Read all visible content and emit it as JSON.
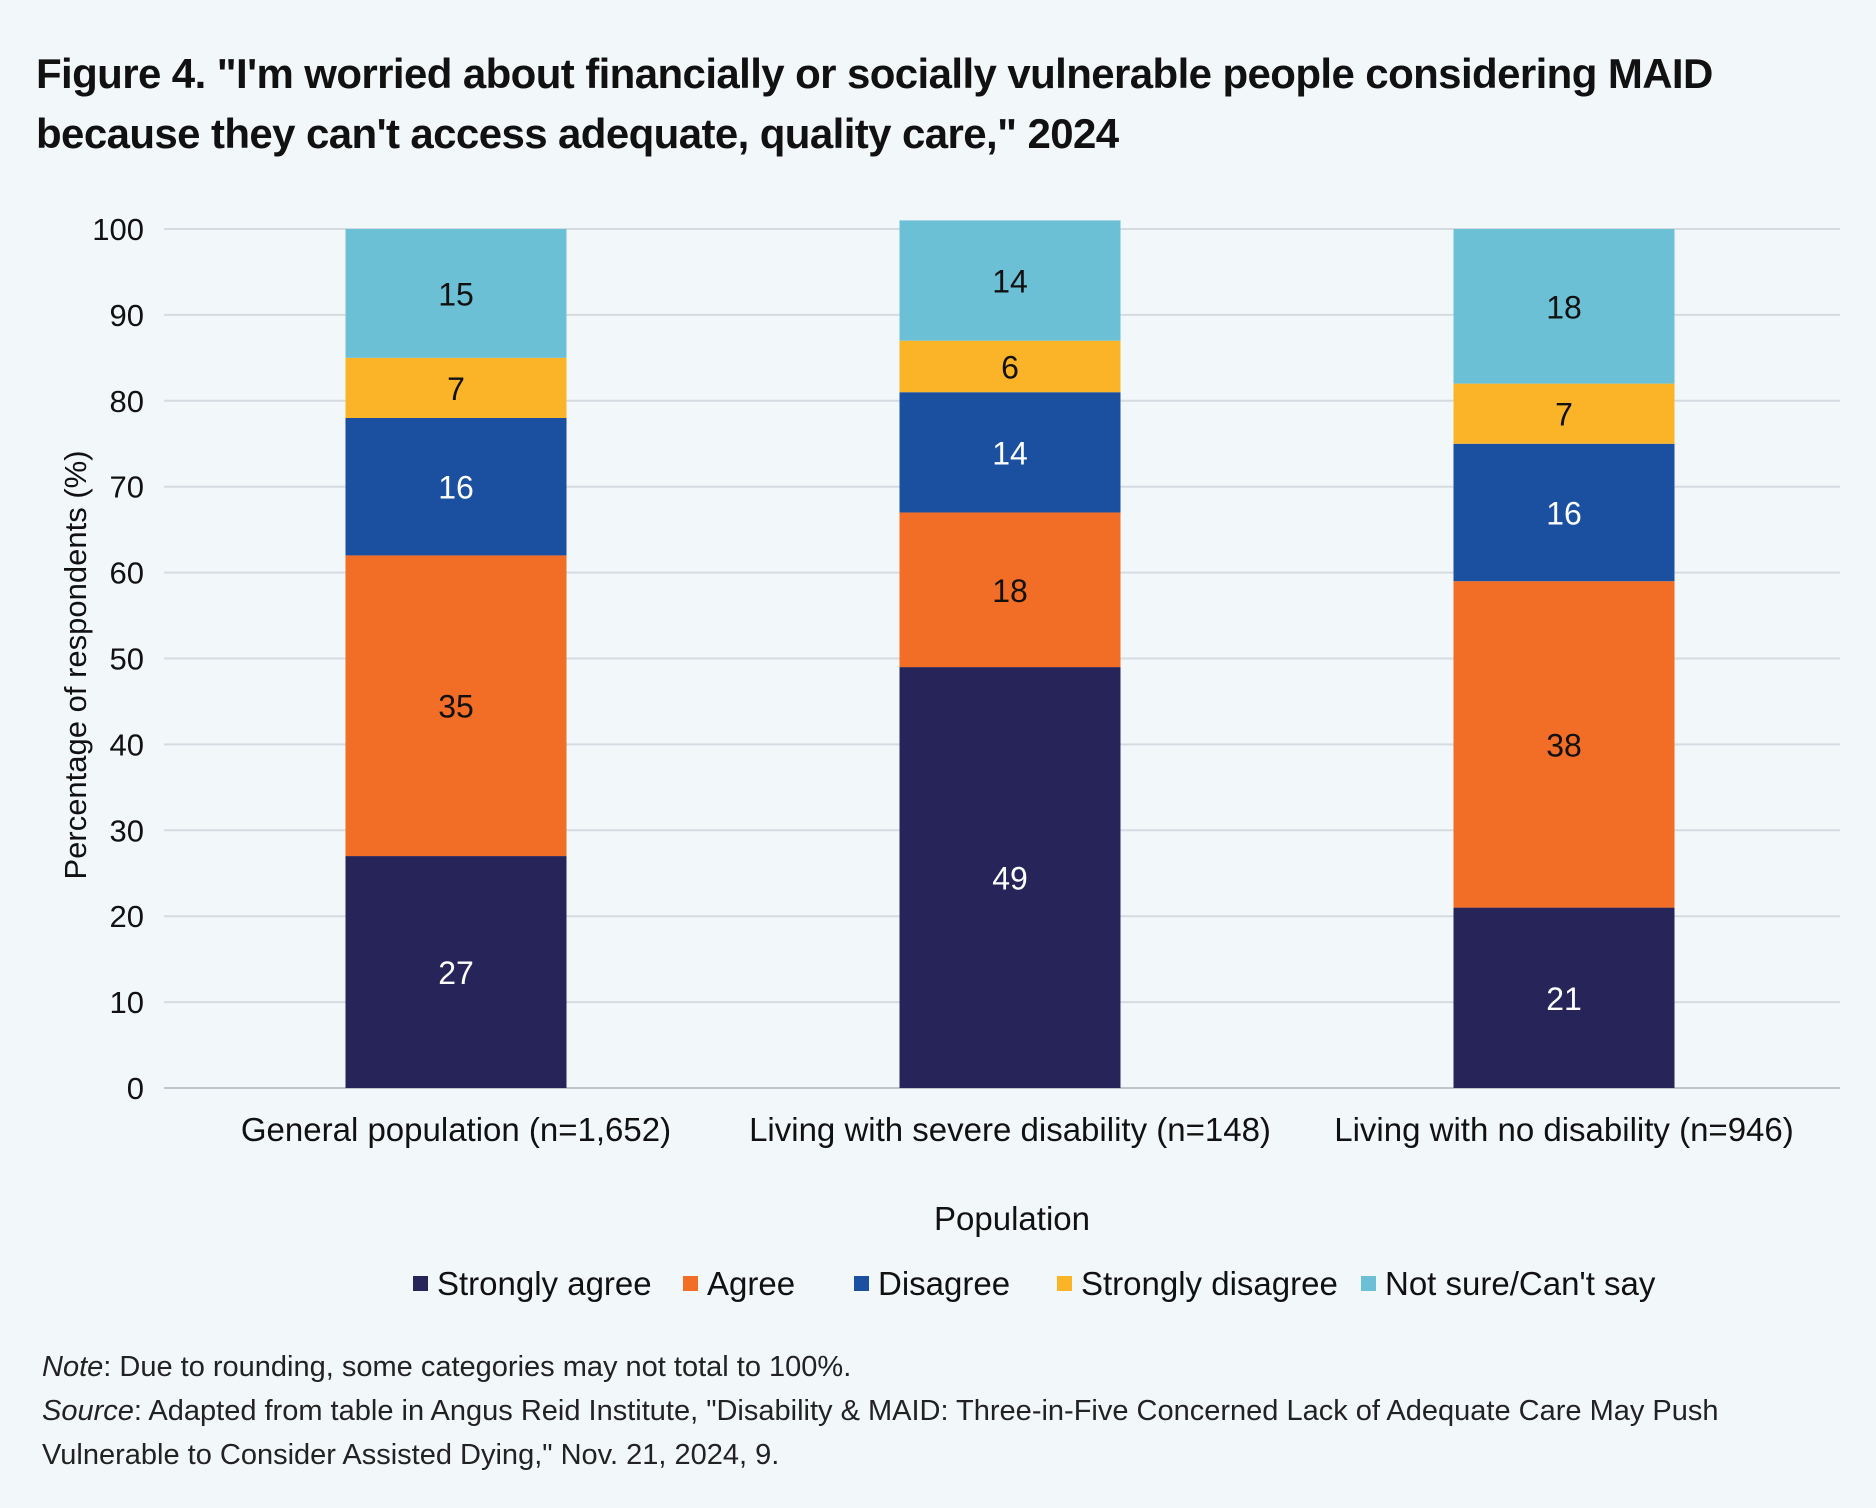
{
  "chart_data": {
    "type": "bar",
    "stacked": true,
    "title": "Figure 4. \"I'm worried about financially or socially vulnerable people considering MAID because they can't access adequate, quality care,\" 2024",
    "xlabel": "Population",
    "ylabel": "Percentage of respondents (%)",
    "ylim": [
      0,
      100
    ],
    "yticks": [
      0,
      10,
      20,
      30,
      40,
      50,
      60,
      70,
      80,
      90,
      100
    ],
    "grid": true,
    "legend_position": "bottom",
    "categories": [
      "General population (n=1,652)",
      "Living with severe disability (n=148)",
      "Living with no disability (n=946)"
    ],
    "series": [
      {
        "name": "Strongly agree",
        "color": "#262459",
        "label_color": "#ffffff",
        "values": [
          27,
          49,
          21
        ]
      },
      {
        "name": "Agree",
        "color": "#f26d26",
        "label_color": "#111111",
        "values": [
          35,
          18,
          38
        ]
      },
      {
        "name": "Disagree",
        "color": "#1b4fa0",
        "label_color": "#ffffff",
        "values": [
          16,
          14,
          16
        ]
      },
      {
        "name": "Strongly disagree",
        "color": "#fbb427",
        "label_color": "#111111",
        "values": [
          7,
          6,
          7
        ]
      },
      {
        "name": "Not sure/Can't say",
        "color": "#6cc0d6",
        "label_color": "#111111",
        "values": [
          15,
          14,
          18
        ]
      }
    ]
  },
  "notes": {
    "note_label": "Note",
    "note_text": ": Due to rounding, some categories may not total to 100%.",
    "source_label": "Source",
    "source_text": ":  Adapted from table in Angus Reid Institute, \"Disability & MAID: Three-in-Five Concerned Lack of Adequate Care May Push Vulnerable to Consider Assisted Dying,\" Nov. 21, 2024, 9."
  }
}
